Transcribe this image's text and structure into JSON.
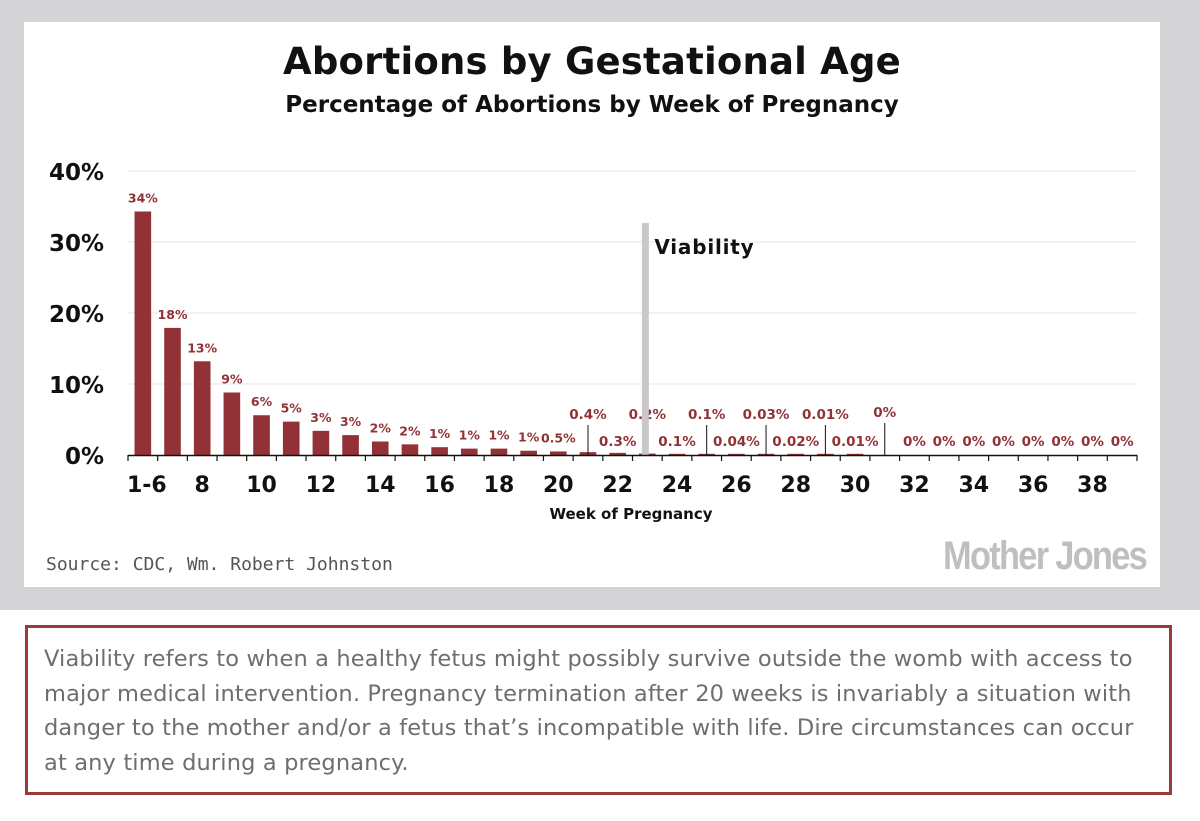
{
  "chart_data": {
    "type": "bar",
    "title": "Abortions by Gestational Age",
    "subtitle": "Percentage of Abortions by Week of Pregnancy",
    "xlabel": "Week of Pregnancy",
    "ylabel": "",
    "ylim": [
      0,
      40
    ],
    "y_ticks": [
      0,
      10,
      20,
      30,
      40
    ],
    "y_tick_labels": [
      "0%",
      "10%",
      "20%",
      "30%",
      "40%"
    ],
    "x_tick_labels": [
      "1-6",
      "8",
      "10",
      "12",
      "14",
      "16",
      "18",
      "20",
      "22",
      "24",
      "26",
      "28",
      "30",
      "32",
      "34",
      "36",
      "38"
    ],
    "categories": [
      "1-6",
      "7",
      "8",
      "9",
      "10",
      "11",
      "12",
      "13",
      "14",
      "15",
      "16",
      "17",
      "18",
      "19",
      "20",
      "21",
      "22",
      "23",
      "24",
      "25",
      "26",
      "27",
      "28",
      "29",
      "30",
      "31",
      "32",
      "33",
      "34",
      "35",
      "36",
      "37",
      "38",
      "39"
    ],
    "values": [
      34.3,
      17.9,
      13.2,
      8.8,
      5.6,
      4.7,
      3.4,
      2.8,
      1.9,
      1.5,
      1.1,
      0.9,
      0.9,
      0.6,
      0.5,
      0.4,
      0.3,
      0.2,
      0.1,
      0.1,
      0.04,
      0.03,
      0.02,
      0.01,
      0.01,
      0.0,
      0.0,
      0.0,
      0.0,
      0.0,
      0.0,
      0.0,
      0.0,
      0.0
    ],
    "data_labels": [
      "34%",
      "18%",
      "13%",
      "9%",
      "6%",
      "5%",
      "3%",
      "3%",
      "2%",
      "2%",
      "1%",
      "1%",
      "1%",
      "1%",
      "0.5%",
      "0.4%",
      "0.3%",
      "0.2%",
      "0.1%",
      "0.1%",
      "0.04%",
      "0.03%",
      "0.02%",
      "0.01%",
      "0.01%",
      "0%",
      "0%",
      "0%",
      "0%",
      "0%",
      "0%",
      "0%",
      "0%",
      "0%"
    ],
    "annotation": {
      "label": "Viability",
      "at_category": "23"
    },
    "grid": true,
    "legend": "none"
  },
  "source": "Source: CDC, Wm. Robert Johnston",
  "logo_text": "Mother Jones",
  "note": "Viability refers to when a healthy fetus might possibly survive outside the womb with access to major medical intervention. Pregnancy termination after 20 weeks is invariably a situation with danger to the mother and/or a fetus that’s incompatible with life. Dire circumstances can occur at any time during a pregnancy.",
  "colors": {
    "bar": "#923236",
    "label": "#923236",
    "viability_line": "#c8c8c8",
    "frame": "#d4d4d6",
    "note_border": "#9b3b36"
  }
}
